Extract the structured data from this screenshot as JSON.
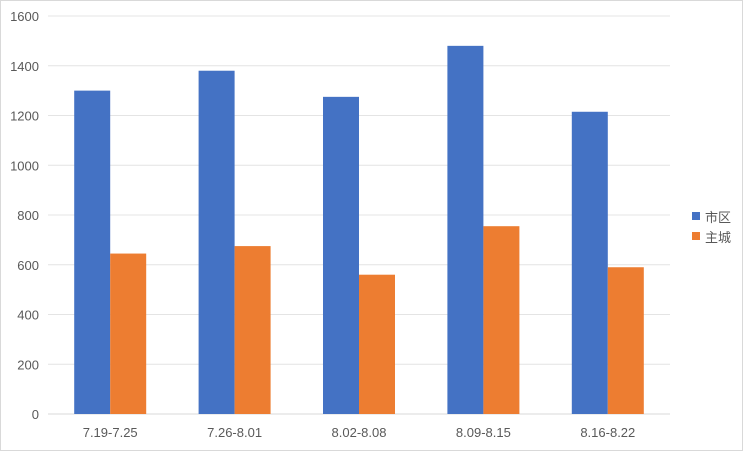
{
  "chart_data": {
    "type": "bar",
    "title": "",
    "xlabel": "",
    "ylabel": "",
    "categories": [
      "7.19-7.25",
      "7.26-8.01",
      "8.02-8.08",
      "8.09-8.15",
      "8.16-8.22"
    ],
    "series": [
      {
        "name": "市区",
        "color": "#4472c4",
        "values": [
          1300,
          1380,
          1275,
          1480,
          1215
        ]
      },
      {
        "name": "主城",
        "color": "#ed7d31",
        "values": [
          645,
          675,
          560,
          755,
          590
        ]
      }
    ],
    "ylim": [
      0,
      1600
    ],
    "yticks": [
      0,
      200,
      400,
      600,
      800,
      1000,
      1200,
      1400,
      1600
    ],
    "grid": true,
    "legend_position": "right"
  }
}
